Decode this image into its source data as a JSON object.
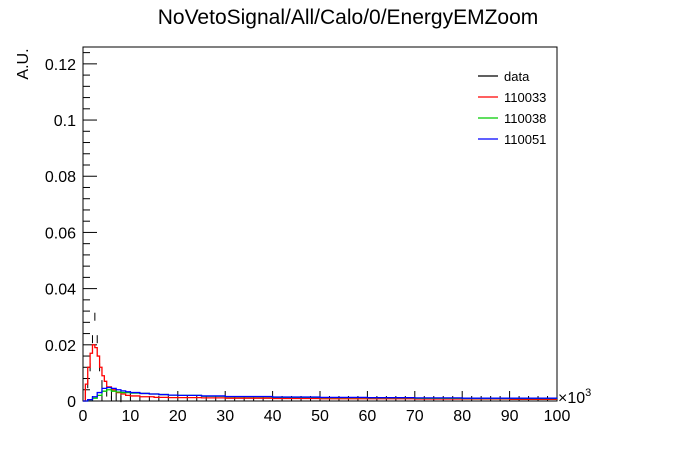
{
  "chart_data": {
    "type": "line",
    "title": "NoVetoSignal/All/Calo/0/EnergyEMZoom",
    "xlabel": "",
    "ylabel": "A.U.",
    "x_multiplier_label": "×10",
    "x_multiplier_exp": "3",
    "xlim": [
      0,
      100
    ],
    "ylim": [
      0,
      0.126
    ],
    "x_ticks": [
      0,
      10,
      20,
      30,
      40,
      50,
      60,
      70,
      80,
      90,
      100
    ],
    "x_tick_labels": [
      "0",
      "10",
      "20",
      "30",
      "40",
      "50",
      "60",
      "70",
      "80",
      "90",
      "100"
    ],
    "y_ticks": [
      0,
      0.02,
      0.04,
      0.06,
      0.08,
      0.1,
      0.12
    ],
    "y_tick_labels": [
      "0",
      "0.02",
      "0.04",
      "0.06",
      "0.08",
      "0.1",
      "0.12"
    ],
    "grid": false,
    "legend_position": "top-right",
    "series": [
      {
        "name": "data",
        "color": "#000000",
        "style": "markers",
        "x": [
          0.5,
          1.0,
          1.5,
          2.0,
          2.5,
          3.0,
          3.5,
          4.0,
          5.0,
          6.0,
          7.0,
          8.0
        ],
        "y": [
          0.002,
          0.006,
          0.012,
          0.022,
          0.03,
          0.022,
          0.012,
          0.006,
          0.003,
          0.002,
          0.0015,
          0.001
        ]
      },
      {
        "name": "110033",
        "color": "#ff0000",
        "style": "line",
        "x": [
          0,
          0.5,
          1,
          1.5,
          2,
          2.5,
          3,
          3.5,
          4,
          4.5,
          5,
          6,
          7,
          8,
          9,
          10,
          12,
          15,
          18,
          20,
          25,
          30,
          40,
          50,
          60,
          70,
          80,
          90,
          100
        ],
        "y": [
          0.0,
          0.006,
          0.012,
          0.017,
          0.02,
          0.019,
          0.016,
          0.012,
          0.009,
          0.007,
          0.005,
          0.004,
          0.003,
          0.0025,
          0.002,
          0.0018,
          0.0015,
          0.0013,
          0.0012,
          0.0012,
          0.0011,
          0.001,
          0.0009,
          0.0008,
          0.0008,
          0.0007,
          0.0007,
          0.0006,
          0.0006
        ]
      },
      {
        "name": "110038",
        "color": "#00cc00",
        "style": "line",
        "x": [
          0,
          1,
          2,
          3,
          4,
          5,
          6,
          7,
          8,
          9,
          10,
          12,
          14,
          16,
          18,
          20,
          25,
          30,
          40,
          50,
          60,
          70,
          80,
          90,
          100
        ],
        "y": [
          0.0,
          0.0005,
          0.001,
          0.002,
          0.0035,
          0.004,
          0.0035,
          0.0032,
          0.003,
          0.003,
          0.0028,
          0.0027,
          0.0025,
          0.0023,
          0.0021,
          0.002,
          0.0017,
          0.0015,
          0.0013,
          0.0012,
          0.0011,
          0.001,
          0.0009,
          0.0009,
          0.0008
        ]
      },
      {
        "name": "110051",
        "color": "#0000ff",
        "style": "line",
        "x": [
          0,
          1,
          2,
          3,
          4,
          5,
          6,
          7,
          8,
          9,
          10,
          12,
          14,
          16,
          18,
          20,
          25,
          30,
          40,
          50,
          60,
          70,
          80,
          90,
          100
        ],
        "y": [
          0.0,
          0.0005,
          0.0015,
          0.003,
          0.0045,
          0.0048,
          0.0045,
          0.004,
          0.0036,
          0.0033,
          0.003,
          0.0027,
          0.0025,
          0.0023,
          0.0021,
          0.002,
          0.0018,
          0.0016,
          0.0014,
          0.0013,
          0.0012,
          0.0011,
          0.001,
          0.001,
          0.0009
        ]
      }
    ]
  }
}
